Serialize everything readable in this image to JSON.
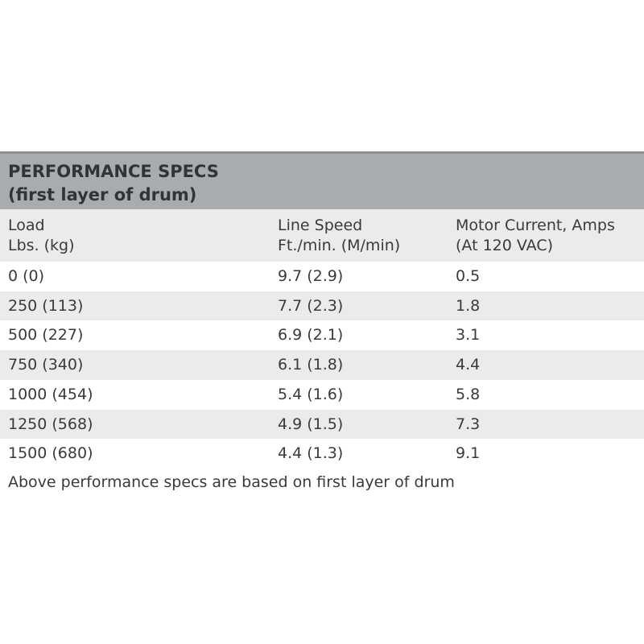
{
  "header": {
    "title_lines": [
      "PERFORMANCE SPECS",
      "(first layer of drum)"
    ]
  },
  "table": {
    "columns": [
      [
        "Load",
        "Lbs. (kg)"
      ],
      [
        "Line Speed",
        "Ft./min. (M/min)"
      ],
      [
        "Motor Current, Amps",
        "(At 120 VAC)"
      ]
    ],
    "rows": [
      [
        "0 (0)",
        "9.7 (2.9)",
        "0.5"
      ],
      [
        "250 (113)",
        "7.7 (2.3)",
        "1.8"
      ],
      [
        "500 (227)",
        "6.9 (2.1)",
        "3.1"
      ],
      [
        "750 (340)",
        "6.1 (1.8)",
        "4.4"
      ],
      [
        "1000 (454)",
        "5.4 (1.6)",
        "5.8"
      ],
      [
        "1250 (568)",
        "4.9 (1.5)",
        "7.3"
      ],
      [
        "1500 (680)",
        "4.4 (1.3)",
        "9.1"
      ]
    ]
  },
  "note": "Above performance specs are based on first layer of drum"
}
